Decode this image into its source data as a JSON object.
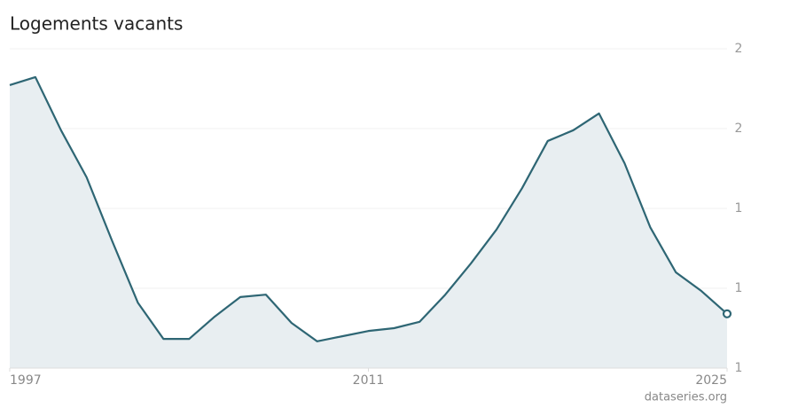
{
  "chart_data": {
    "type": "area",
    "title": "Logements vacants",
    "source": "dataseries.org",
    "x": [
      1997,
      1998,
      1999,
      2000,
      2001,
      2002,
      2003,
      2004,
      2005,
      2006,
      2007,
      2008,
      2009,
      2010,
      2011,
      2012,
      2013,
      2014,
      2015,
      2016,
      2017,
      2018,
      2019,
      2020,
      2021,
      2022,
      2023,
      2024,
      2025
    ],
    "values": [
      1.709,
      1.729,
      1.596,
      1.478,
      1.318,
      1.164,
      1.073,
      1.073,
      1.129,
      1.178,
      1.184,
      1.113,
      1.067,
      1.08,
      1.093,
      1.1,
      1.116,
      1.184,
      1.262,
      1.347,
      1.451,
      1.569,
      1.596,
      1.638,
      1.513,
      1.353,
      1.24,
      1.193,
      1.136
    ],
    "color": "#2e6674",
    "fill": "#e8eef1",
    "xlim": [
      1997,
      2025
    ],
    "xticks": [
      1997,
      2011,
      2025
    ],
    "ylim": [
      1,
      1.8
    ],
    "yticks": [
      1,
      {
        "value": 1.2,
        "label": "1"
      },
      {
        "value": 1.4,
        "label": "1"
      },
      {
        "value": 1.6,
        "label": "2"
      },
      {
        "value": 1.8,
        "label": "2"
      }
    ],
    "grid": true
  }
}
